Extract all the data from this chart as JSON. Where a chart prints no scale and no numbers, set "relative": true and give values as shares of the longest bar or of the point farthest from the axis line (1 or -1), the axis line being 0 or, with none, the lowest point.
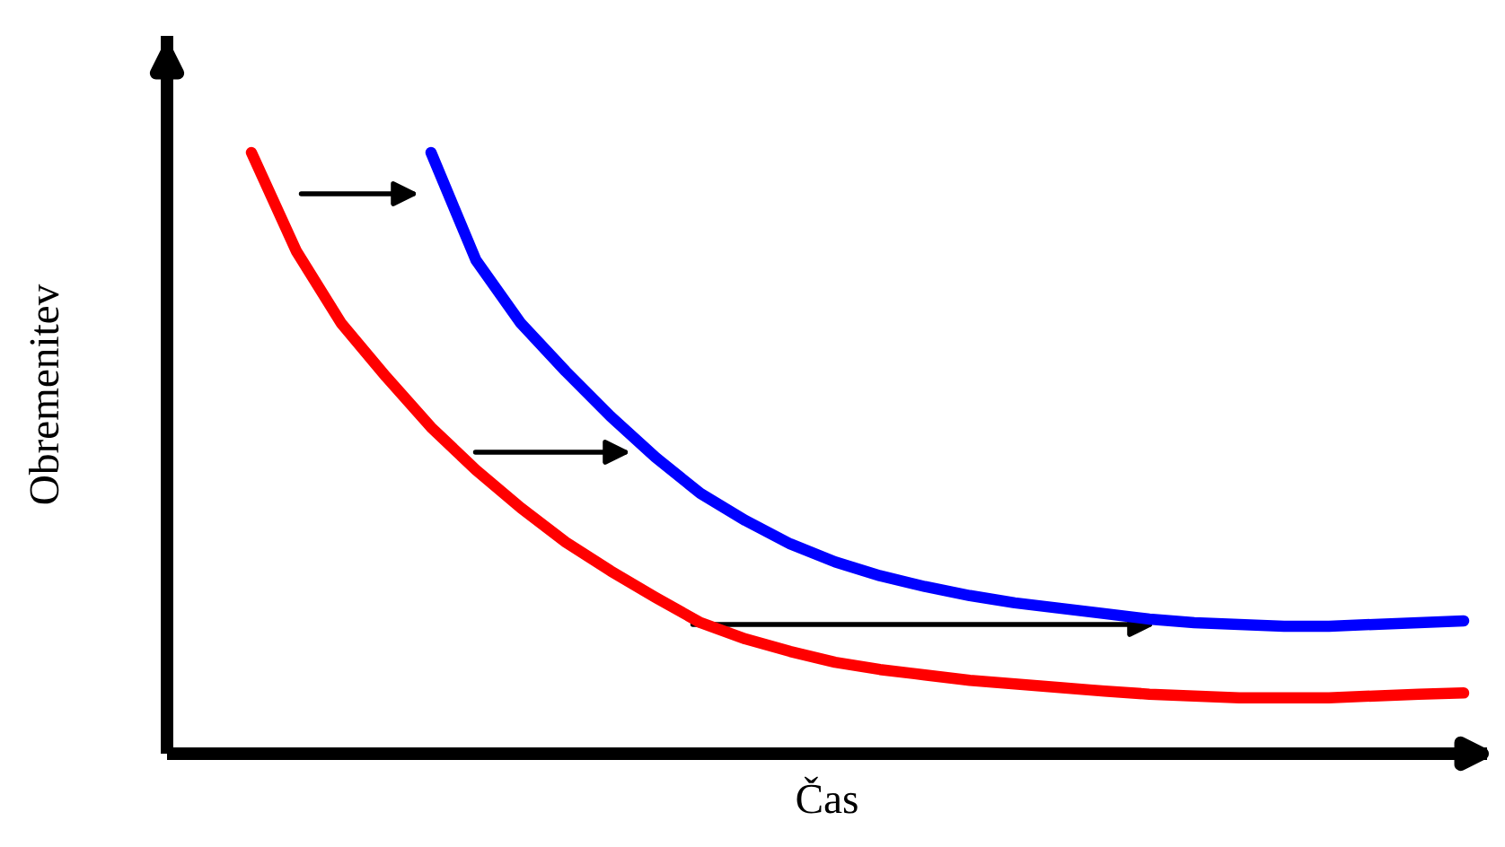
{
  "chart_data": {
    "type": "line",
    "relative": true,
    "xlabel": "Čas",
    "ylabel": "Obremenitev",
    "legend": false,
    "marker": "none",
    "line_style": "solid",
    "categories": [
      null,
      null,
      null,
      null,
      null,
      null,
      null,
      null,
      null,
      null,
      null,
      null,
      null,
      null,
      null,
      null,
      null,
      null,
      null,
      null,
      null,
      null,
      null,
      null,
      null,
      null,
      null,
      null
    ],
    "series": [
      {
        "color": "#ff0000",
        "values": [
          1,
          0.836,
          0.716,
          0.627,
          0.543,
          0.472,
          0.409,
          0.352,
          0.304,
          0.26,
          0.218,
          0.191,
          0.17,
          0.152,
          0.14,
          0.131,
          0.122,
          0.116,
          0.11,
          0.104,
          0.099,
          0.096,
          0.093,
          0.093,
          0.093,
          0.096,
          0.099,
          0.101
        ]
      },
      {
        "color": "#0000ff",
        "values": [
          null,
          null,
          null,
          null,
          1,
          0.821,
          0.716,
          0.636,
          0.561,
          0.493,
          0.433,
          0.388,
          0.349,
          0.319,
          0.296,
          0.278,
          0.263,
          0.251,
          0.242,
          0.233,
          0.224,
          0.218,
          0.215,
          0.212,
          0.212,
          0.215,
          0.218,
          0.221
        ]
      }
    ]
  }
}
